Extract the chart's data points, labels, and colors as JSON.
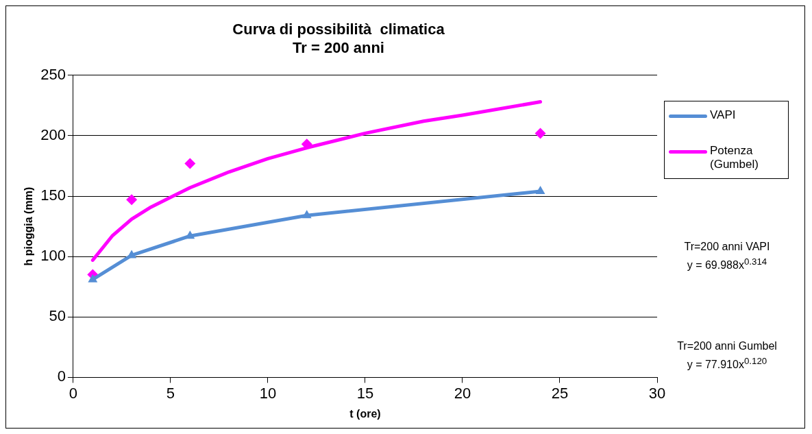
{
  "chart_data": {
    "type": "line",
    "title": "Curva di possibilità  climatica\nTr = 200 anni",
    "xlabel": "t (ore)",
    "ylabel": "h pioggia (mm)",
    "xlim": [
      0,
      30
    ],
    "xticks": [
      0,
      5,
      10,
      15,
      20,
      25,
      30
    ],
    "ylim": [
      0,
      250
    ],
    "yticks": [
      0,
      50,
      100,
      150,
      200,
      250
    ],
    "grid": "y",
    "legend": "right",
    "series": [
      {
        "name": "VAPI",
        "color": "#558ed5",
        "marker": "triangle",
        "x": [
          1,
          3,
          6,
          12,
          24
        ],
        "values": [
          81,
          101,
          117,
          134,
          154
        ]
      },
      {
        "type": "scatter",
        "color": "#ff00ff",
        "marker": "diamond",
        "x": [
          1,
          3,
          6,
          12,
          24
        ],
        "values": [
          85,
          147,
          177,
          193,
          202
        ]
      },
      {
        "name": "Potenza (Gumbel)",
        "color": "#ff00ff",
        "marker": "none",
        "x": [
          1,
          2,
          3,
          4,
          6,
          8,
          10,
          12,
          15,
          18,
          20,
          24
        ],
        "values": [
          97,
          117,
          131,
          141,
          157,
          170,
          181,
          190,
          202,
          212,
          217,
          228
        ]
      }
    ],
    "annotations": [
      "Tr=200 anni VAPI\ny = 69.988x$^{0.314}$",
      "Tr=200 anni Gumbel\ny = 77.910x$^{0.120}$"
    ]
  }
}
